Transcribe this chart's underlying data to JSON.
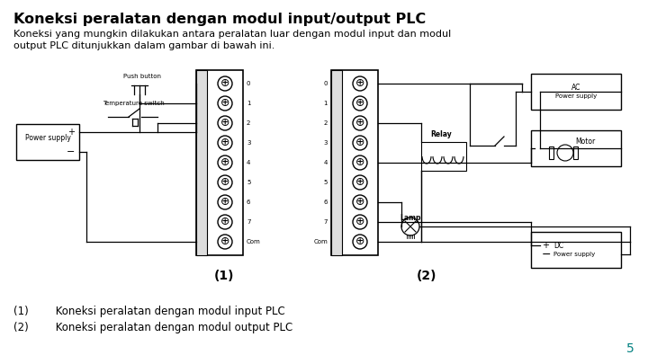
{
  "bg_color": "#ffffff",
  "title": "Koneksi peralatan dengan modul input/output PLC",
  "subtitle_line1": "Koneksi yang mungkin dilakukan antara peralatan luar dengan modul input dan modul",
  "subtitle_line2": "output PLC ditunjukkan dalam gambar di bawah ini.",
  "label1": "(1)",
  "label2": "(2)",
  "caption1": "(1)        Koneksi peralatan dengan modul input PLC",
  "caption2": "(2)        Koneksi peralatan dengan modul output PLC",
  "page_num": "5",
  "page_color": "#008080"
}
